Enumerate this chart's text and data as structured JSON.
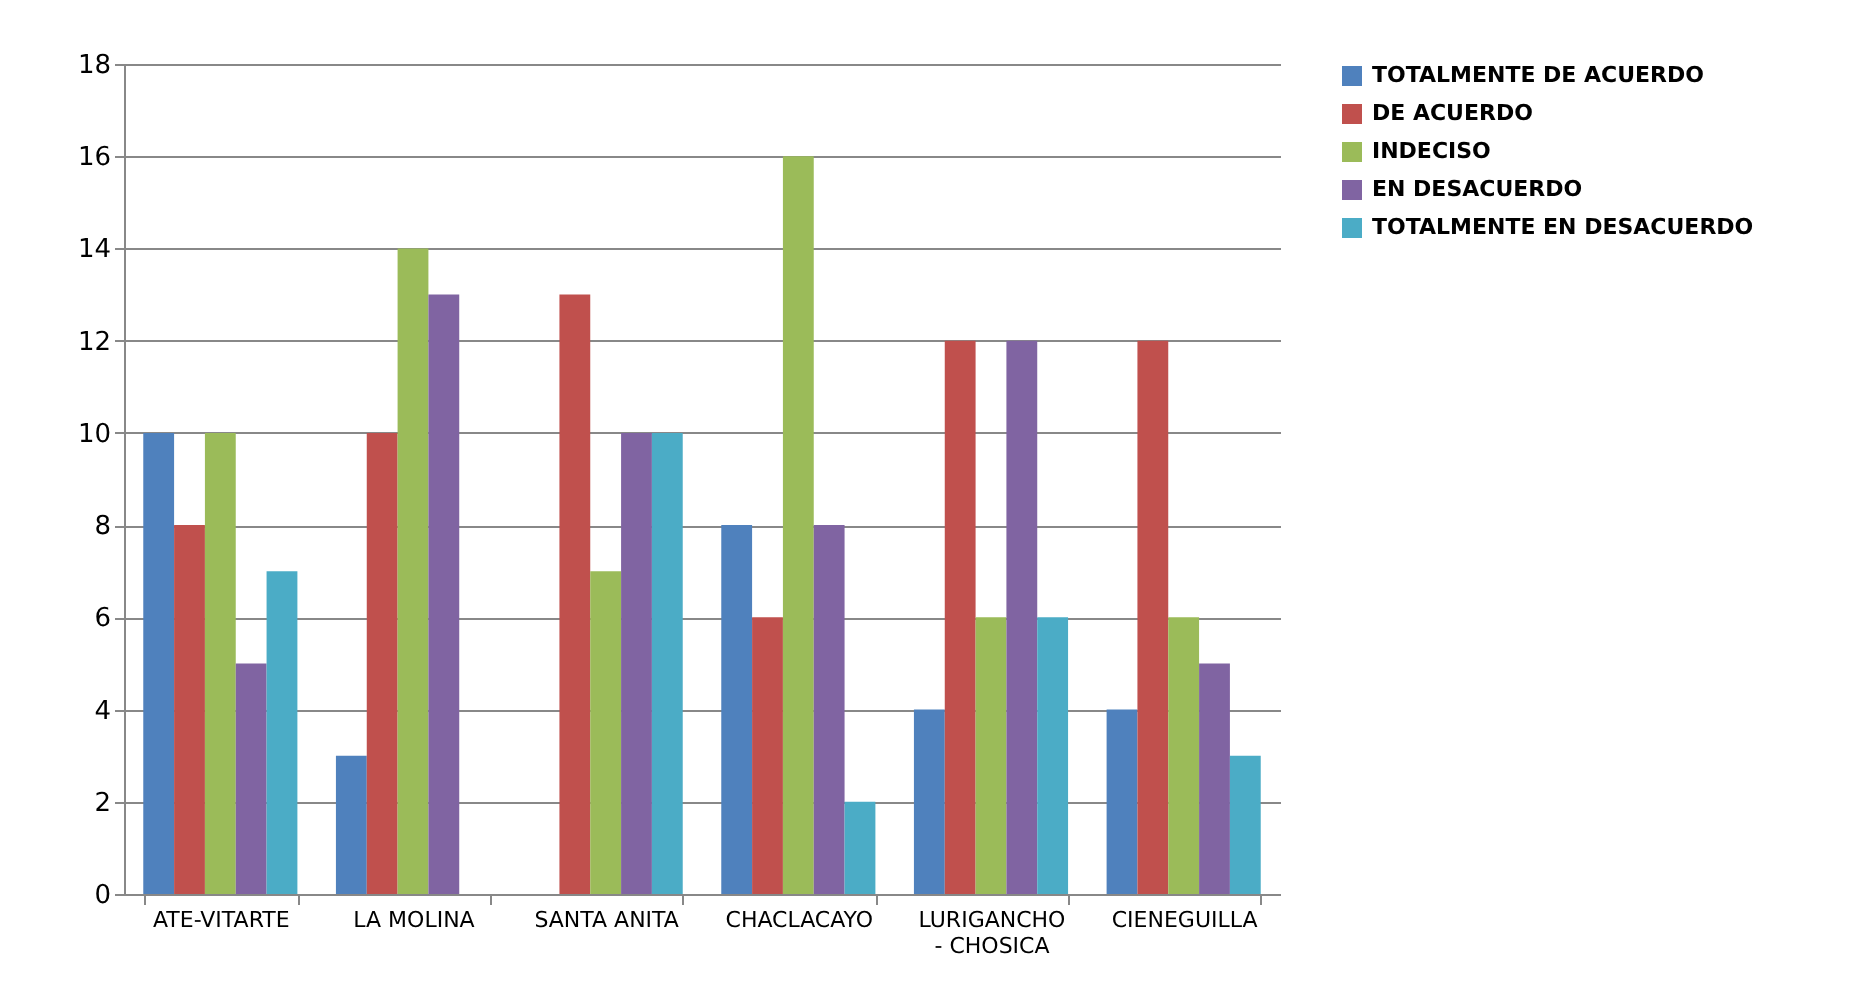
{
  "chart_data": {
    "type": "bar",
    "categories": [
      "ATE-VITARTE",
      "LA MOLINA",
      "SANTA ANITA",
      "CHACLACAYO",
      "LURIGANCHO - CHOSICA",
      "CIENEGUILLA"
    ],
    "series": [
      {
        "name": "TOTALMENTE DE ACUERDO",
        "color": "#4f81bd",
        "values": [
          10,
          3,
          0,
          8,
          4,
          4
        ]
      },
      {
        "name": "DE ACUERDO",
        "color": "#c0504d",
        "values": [
          8,
          10,
          13,
          6,
          12,
          12
        ]
      },
      {
        "name": "INDECISO",
        "color": "#9bbb59",
        "values": [
          10,
          14,
          7,
          16,
          6,
          6
        ]
      },
      {
        "name": "EN DESACUERDO",
        "color": "#8064a2",
        "values": [
          5,
          13,
          10,
          8,
          12,
          5
        ]
      },
      {
        "name": "TOTALMENTE EN DESACUERDO",
        "color": "#4bacc6",
        "values": [
          7,
          0,
          10,
          2,
          6,
          3
        ]
      }
    ],
    "ylim": [
      0,
      18
    ],
    "yticks": [
      0,
      2,
      4,
      6,
      8,
      10,
      12,
      14,
      16,
      18
    ],
    "grid": "y",
    "legend": "right"
  }
}
